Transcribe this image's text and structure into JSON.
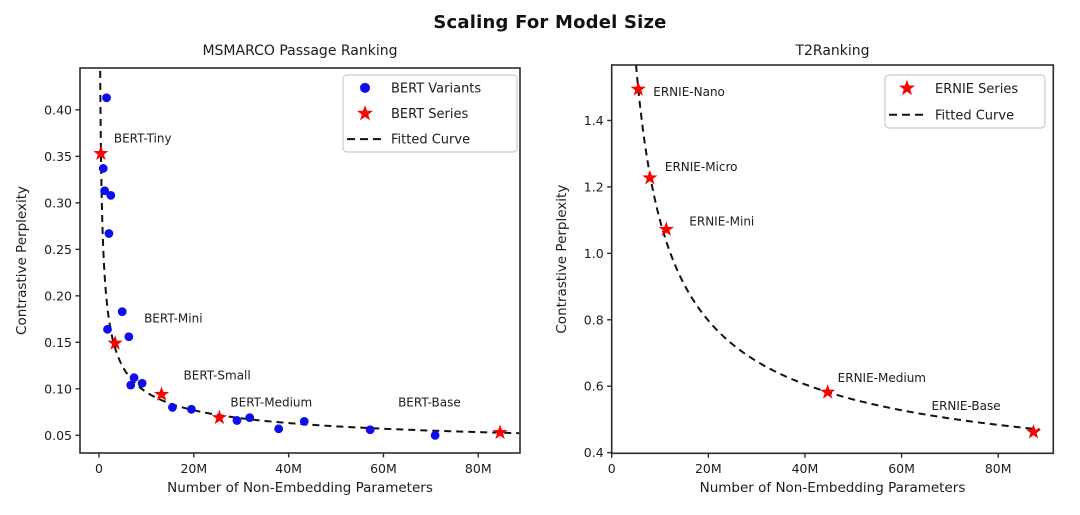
{
  "suptitle": "Scaling For Model Size",
  "colors": {
    "scatter_blue": "#0d0dee",
    "star_red": "#f50400",
    "curve_black": "#111111",
    "spine": "#2b2b2b",
    "text": "#1c1c1c",
    "legend_border": "#cccccc",
    "background": "#ffffff"
  },
  "chart_data": [
    {
      "type": "scatter",
      "title": "MSMARCO Passage Ranking",
      "xlabel": "Number of Non-Embedding Parameters",
      "ylabel": "Contrastive Perplexity",
      "x_unit": "millions of parameters",
      "xlim": [
        -4,
        88.8
      ],
      "ylim": [
        0.031,
        0.445
      ],
      "xticks": {
        "values": [
          0,
          20,
          40,
          60,
          80
        ],
        "labels": [
          "0",
          "20M",
          "40M",
          "60M",
          "80M"
        ]
      },
      "yticks": {
        "values": [
          0.05,
          0.1,
          0.15,
          0.2,
          0.25,
          0.3,
          0.35,
          0.4
        ],
        "labels": [
          "0.05",
          "0.10",
          "0.15",
          "0.20",
          "0.25",
          "0.30",
          "0.35",
          "0.40"
        ]
      },
      "grid": false,
      "legend_position": "upper right",
      "legend": [
        {
          "marker": "dot",
          "label": "BERT Variants"
        },
        {
          "marker": "star",
          "label": "BERT Series"
        },
        {
          "marker": "dash",
          "label": "Fitted Curve"
        }
      ],
      "series": [
        {
          "name": "BERT Variants",
          "marker": "dot",
          "points": [
            [
              1.6,
              0.413
            ],
            [
              0.9,
              0.337
            ],
            [
              1.2,
              0.313
            ],
            [
              2.5,
              0.308
            ],
            [
              2.1,
              0.267
            ],
            [
              1.8,
              0.164
            ],
            [
              4.9,
              0.183
            ],
            [
              6.3,
              0.156
            ],
            [
              6.7,
              0.104
            ],
            [
              7.4,
              0.112
            ],
            [
              9.1,
              0.106
            ],
            [
              15.5,
              0.08
            ],
            [
              19.5,
              0.078
            ],
            [
              29.1,
              0.066
            ],
            [
              31.8,
              0.069
            ],
            [
              37.9,
              0.057
            ],
            [
              43.3,
              0.065
            ],
            [
              57.2,
              0.056
            ],
            [
              70.9,
              0.05
            ]
          ]
        },
        {
          "name": "BERT Series",
          "marker": "star",
          "points": [
            {
              "x": 0.4,
              "y": 0.353,
              "label": "BERT-Tiny",
              "label_offset": [
                13,
                -11
              ]
            },
            {
              "x": 3.4,
              "y": 0.149,
              "label": "BERT-Mini",
              "label_offset": [
                29,
                -21
              ]
            },
            {
              "x": 13.2,
              "y": 0.094,
              "label": "BERT-Small",
              "label_offset": [
                22,
                -15
              ]
            },
            {
              "x": 25.4,
              "y": 0.069,
              "label": "BERT-Medium",
              "label_offset": [
                11,
                -11
              ]
            },
            {
              "x": 84.6,
              "y": 0.053,
              "label": "BERT-Base",
              "label_offset": [
                -102,
                -26
              ]
            }
          ]
        }
      ],
      "fitted_curve": {
        "formula": "y = a*x^(-b) + c",
        "a": 0.21,
        "b": 0.5,
        "c": 0.03,
        "x_start": 0.26,
        "x_end": 88.6
      }
    },
    {
      "type": "scatter",
      "title": "T2Ranking",
      "xlabel": "Number of Non-Embedding Parameters",
      "ylabel": "Contrastive Perplexity",
      "x_unit": "millions of parameters",
      "xlim": [
        0,
        91.4
      ],
      "ylim": [
        0.398,
        1.567
      ],
      "xticks": {
        "values": [
          0,
          20,
          40,
          60,
          80
        ],
        "labels": [
          "0",
          "20M",
          "40M",
          "60M",
          "80M"
        ]
      },
      "yticks": {
        "values": [
          0.4,
          0.6,
          0.8,
          1.0,
          1.2,
          1.4
        ],
        "labels": [
          "0.4",
          "0.6",
          "0.8",
          "1.0",
          "1.2",
          "1.4"
        ]
      },
      "grid": false,
      "legend_position": "upper right",
      "legend": [
        {
          "marker": "star",
          "label": "ERNIE Series"
        },
        {
          "marker": "dash",
          "label": "Fitted Curve"
        }
      ],
      "series": [
        {
          "name": "ERNIE Series",
          "marker": "star",
          "points": [
            {
              "x": 5.5,
              "y": 1.494,
              "label": "ERNIE-Nano",
              "label_offset": [
                15,
                7
              ]
            },
            {
              "x": 7.9,
              "y": 1.227,
              "label": "ERNIE-Micro",
              "label_offset": [
                15,
                -7
              ]
            },
            {
              "x": 11.3,
              "y": 1.072,
              "label": "ERNIE-Mini",
              "label_offset": [
                23,
                -4
              ]
            },
            {
              "x": 44.7,
              "y": 0.582,
              "label": "ERNIE-Medium",
              "label_offset": [
                10,
                -10
              ]
            },
            {
              "x": 87.3,
              "y": 0.462,
              "label": "ERNIE-Base",
              "label_offset": [
                -102,
                -22
              ]
            }
          ]
        }
      ],
      "fitted_curve": {
        "formula": "y = a*x^(-b) + c",
        "a": 3.726,
        "b": 0.6525,
        "c": 0.27,
        "x_start": 5.04,
        "x_end": 88.6
      }
    }
  ]
}
